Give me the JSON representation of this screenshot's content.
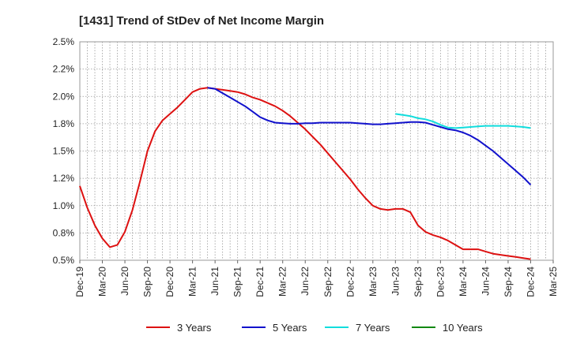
{
  "chart_data": {
    "type": "line",
    "title": "[1431]  Trend of StDev of Net Income Margin",
    "xlabel": "",
    "ylabel": "",
    "x_ticks": [
      "Dec-19",
      "Mar-20",
      "Jun-20",
      "Sep-20",
      "Dec-20",
      "Mar-21",
      "Jun-21",
      "Sep-21",
      "Dec-21",
      "Mar-22",
      "Jun-22",
      "Sep-22",
      "Dec-22",
      "Mar-23",
      "Jun-23",
      "Sep-23",
      "Dec-23",
      "Mar-24",
      "Jun-24",
      "Sep-24",
      "Dec-24",
      "Mar-25"
    ],
    "y_ticks": [
      "0.5%",
      "0.8%",
      "1.0%",
      "1.2%",
      "1.5%",
      "1.8%",
      "2.0%",
      "2.2%",
      "2.5%"
    ],
    "ylim": [
      0.5,
      2.5
    ],
    "grid": true,
    "legend_position": "bottom",
    "series": [
      {
        "name": "3 Years",
        "color": "#dd1111",
        "x": [
          "Dec-19",
          "Jan-20",
          "Feb-20",
          "Mar-20",
          "Apr-20",
          "May-20",
          "Jun-20",
          "Jul-20",
          "Aug-20",
          "Sep-20",
          "Oct-20",
          "Nov-20",
          "Dec-20",
          "Jan-21",
          "Feb-21",
          "Mar-21",
          "Apr-21",
          "May-21",
          "Jun-21",
          "Jul-21",
          "Aug-21",
          "Sep-21",
          "Oct-21",
          "Nov-21",
          "Dec-21",
          "Jan-22",
          "Feb-22",
          "Mar-22",
          "Apr-22",
          "May-22",
          "Jun-22",
          "Jul-22",
          "Aug-22",
          "Sep-22",
          "Oct-22",
          "Nov-22",
          "Dec-22",
          "Jan-23",
          "Feb-23",
          "Mar-23",
          "Apr-23",
          "May-23",
          "Jun-23",
          "Jul-23",
          "Aug-23",
          "Sep-23",
          "Oct-23",
          "Nov-23",
          "Dec-23",
          "Jan-24",
          "Feb-24",
          "Mar-24",
          "Apr-24",
          "May-24",
          "Jun-24",
          "Jul-24",
          "Aug-24",
          "Sep-24",
          "Oct-24",
          "Nov-24",
          "Dec-24"
        ],
        "values": [
          1.18,
          0.98,
          0.82,
          0.7,
          0.62,
          0.64,
          0.76,
          0.96,
          1.22,
          1.5,
          1.68,
          1.78,
          1.84,
          1.9,
          1.97,
          2.04,
          2.07,
          2.08,
          2.07,
          2.06,
          2.05,
          2.04,
          2.02,
          1.99,
          1.97,
          1.94,
          1.91,
          1.87,
          1.82,
          1.76,
          1.7,
          1.63,
          1.56,
          1.48,
          1.4,
          1.32,
          1.24,
          1.15,
          1.07,
          1.0,
          0.97,
          0.96,
          0.97,
          0.97,
          0.94,
          0.82,
          0.76,
          0.73,
          0.71,
          0.68,
          0.64,
          0.6,
          0.6,
          0.6,
          0.58,
          0.56,
          0.55,
          0.54,
          0.53,
          0.52,
          0.51
        ]
      },
      {
        "name": "5 Years",
        "color": "#1111cc",
        "x": [
          "May-21",
          "Jun-21",
          "Jul-21",
          "Aug-21",
          "Sep-21",
          "Oct-21",
          "Nov-21",
          "Dec-21",
          "Jan-22",
          "Feb-22",
          "Mar-22",
          "Apr-22",
          "May-22",
          "Jun-22",
          "Jul-22",
          "Aug-22",
          "Sep-22",
          "Oct-22",
          "Nov-22",
          "Dec-22",
          "Jan-23",
          "Feb-23",
          "Mar-23",
          "Apr-23",
          "May-23",
          "Jun-23",
          "Jul-23",
          "Aug-23",
          "Sep-23",
          "Oct-23",
          "Nov-23",
          "Dec-23",
          "Jan-24",
          "Feb-24",
          "Mar-24",
          "Apr-24",
          "May-24",
          "Jun-24",
          "Jul-24",
          "Aug-24",
          "Sep-24",
          "Oct-24",
          "Nov-24",
          "Dec-24"
        ],
        "values": [
          2.08,
          2.07,
          2.03,
          1.99,
          1.95,
          1.91,
          1.86,
          1.81,
          1.78,
          1.76,
          1.755,
          1.75,
          1.75,
          1.755,
          1.755,
          1.76,
          1.76,
          1.76,
          1.76,
          1.76,
          1.755,
          1.75,
          1.745,
          1.745,
          1.75,
          1.755,
          1.76,
          1.765,
          1.765,
          1.76,
          1.74,
          1.72,
          1.7,
          1.69,
          1.67,
          1.64,
          1.6,
          1.55,
          1.5,
          1.44,
          1.38,
          1.32,
          1.26,
          1.19
        ]
      },
      {
        "name": "7 Years",
        "color": "#11dddd",
        "x": [
          "Jun-23",
          "Jul-23",
          "Aug-23",
          "Sep-23",
          "Oct-23",
          "Nov-23",
          "Dec-23",
          "Jan-24",
          "Feb-24",
          "Mar-24",
          "Apr-24",
          "May-24",
          "Jun-24",
          "Jul-24",
          "Aug-24",
          "Sep-24",
          "Oct-24",
          "Nov-24",
          "Dec-24"
        ],
        "values": [
          1.84,
          1.83,
          1.82,
          1.8,
          1.79,
          1.77,
          1.74,
          1.715,
          1.71,
          1.715,
          1.72,
          1.725,
          1.73,
          1.73,
          1.73,
          1.73,
          1.725,
          1.72,
          1.71
        ]
      },
      {
        "name": "10 Years",
        "color": "#118811",
        "x": [],
        "values": []
      }
    ]
  }
}
